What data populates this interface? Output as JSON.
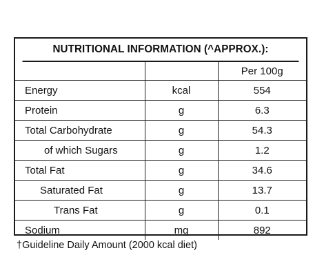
{
  "title": "NUTRITIONAL INFORMATION (^APPROX.):",
  "table": {
    "header": [
      "",
      "",
      "Per 100g"
    ],
    "rows": [
      {
        "name": "Energy",
        "unit": "kcal",
        "value": "554"
      },
      {
        "name": "Protein",
        "unit": "g",
        "value": "6.3"
      },
      {
        "name": "Total Carbohydrate",
        "unit": "g",
        "value": "54.3"
      },
      {
        "name": "of which Sugars",
        "unit": "g",
        "value": "1.2"
      },
      {
        "name": "Total Fat",
        "unit": "g",
        "value": "34.6"
      },
      {
        "name": "Saturated Fat",
        "unit": "g",
        "value": "13.7"
      },
      {
        "name": "Trans Fat",
        "unit": "g",
        "value": "0.1"
      },
      {
        "name": "Sodium",
        "unit": "mg",
        "value": "892"
      }
    ]
  },
  "footnote": "†Guideline Daily Amount (2000 kcal diet)"
}
